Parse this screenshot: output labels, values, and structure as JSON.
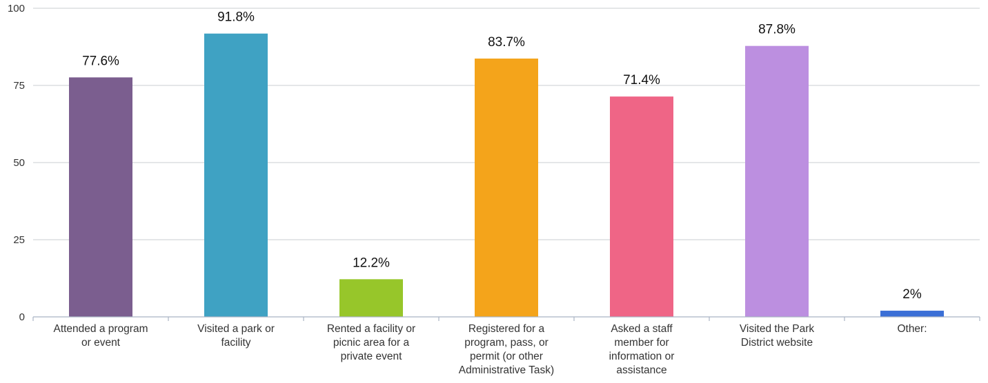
{
  "chart_data": {
    "type": "bar",
    "title": "",
    "xlabel": "",
    "ylabel": "",
    "ylim": [
      0,
      100
    ],
    "yticks": [
      0,
      25,
      50,
      75,
      100
    ],
    "grid": true,
    "categories": [
      [
        "Attended a program",
        "or event"
      ],
      [
        "Visited a park or",
        "facility"
      ],
      [
        "Rented a facility or",
        "picnic area for a",
        "private event"
      ],
      [
        "Registered for a",
        "program, pass, or",
        "permit (or other",
        "Administrative Task)"
      ],
      [
        "Asked a staff",
        "member for",
        "information or",
        "assistance"
      ],
      [
        "Visited the Park",
        "District website"
      ],
      [
        "Other:"
      ]
    ],
    "values": [
      77.6,
      91.8,
      12.2,
      83.7,
      71.4,
      87.8,
      2
    ],
    "value_labels": [
      "77.6%",
      "91.8%",
      "12.2%",
      "83.7%",
      "71.4%",
      "87.8%",
      "2%"
    ],
    "colors": [
      "#7b5e8f",
      "#3fa2c3",
      "#97c62a",
      "#f4a41b",
      "#ef6586",
      "#bc8fe0",
      "#3b6fd6"
    ]
  }
}
